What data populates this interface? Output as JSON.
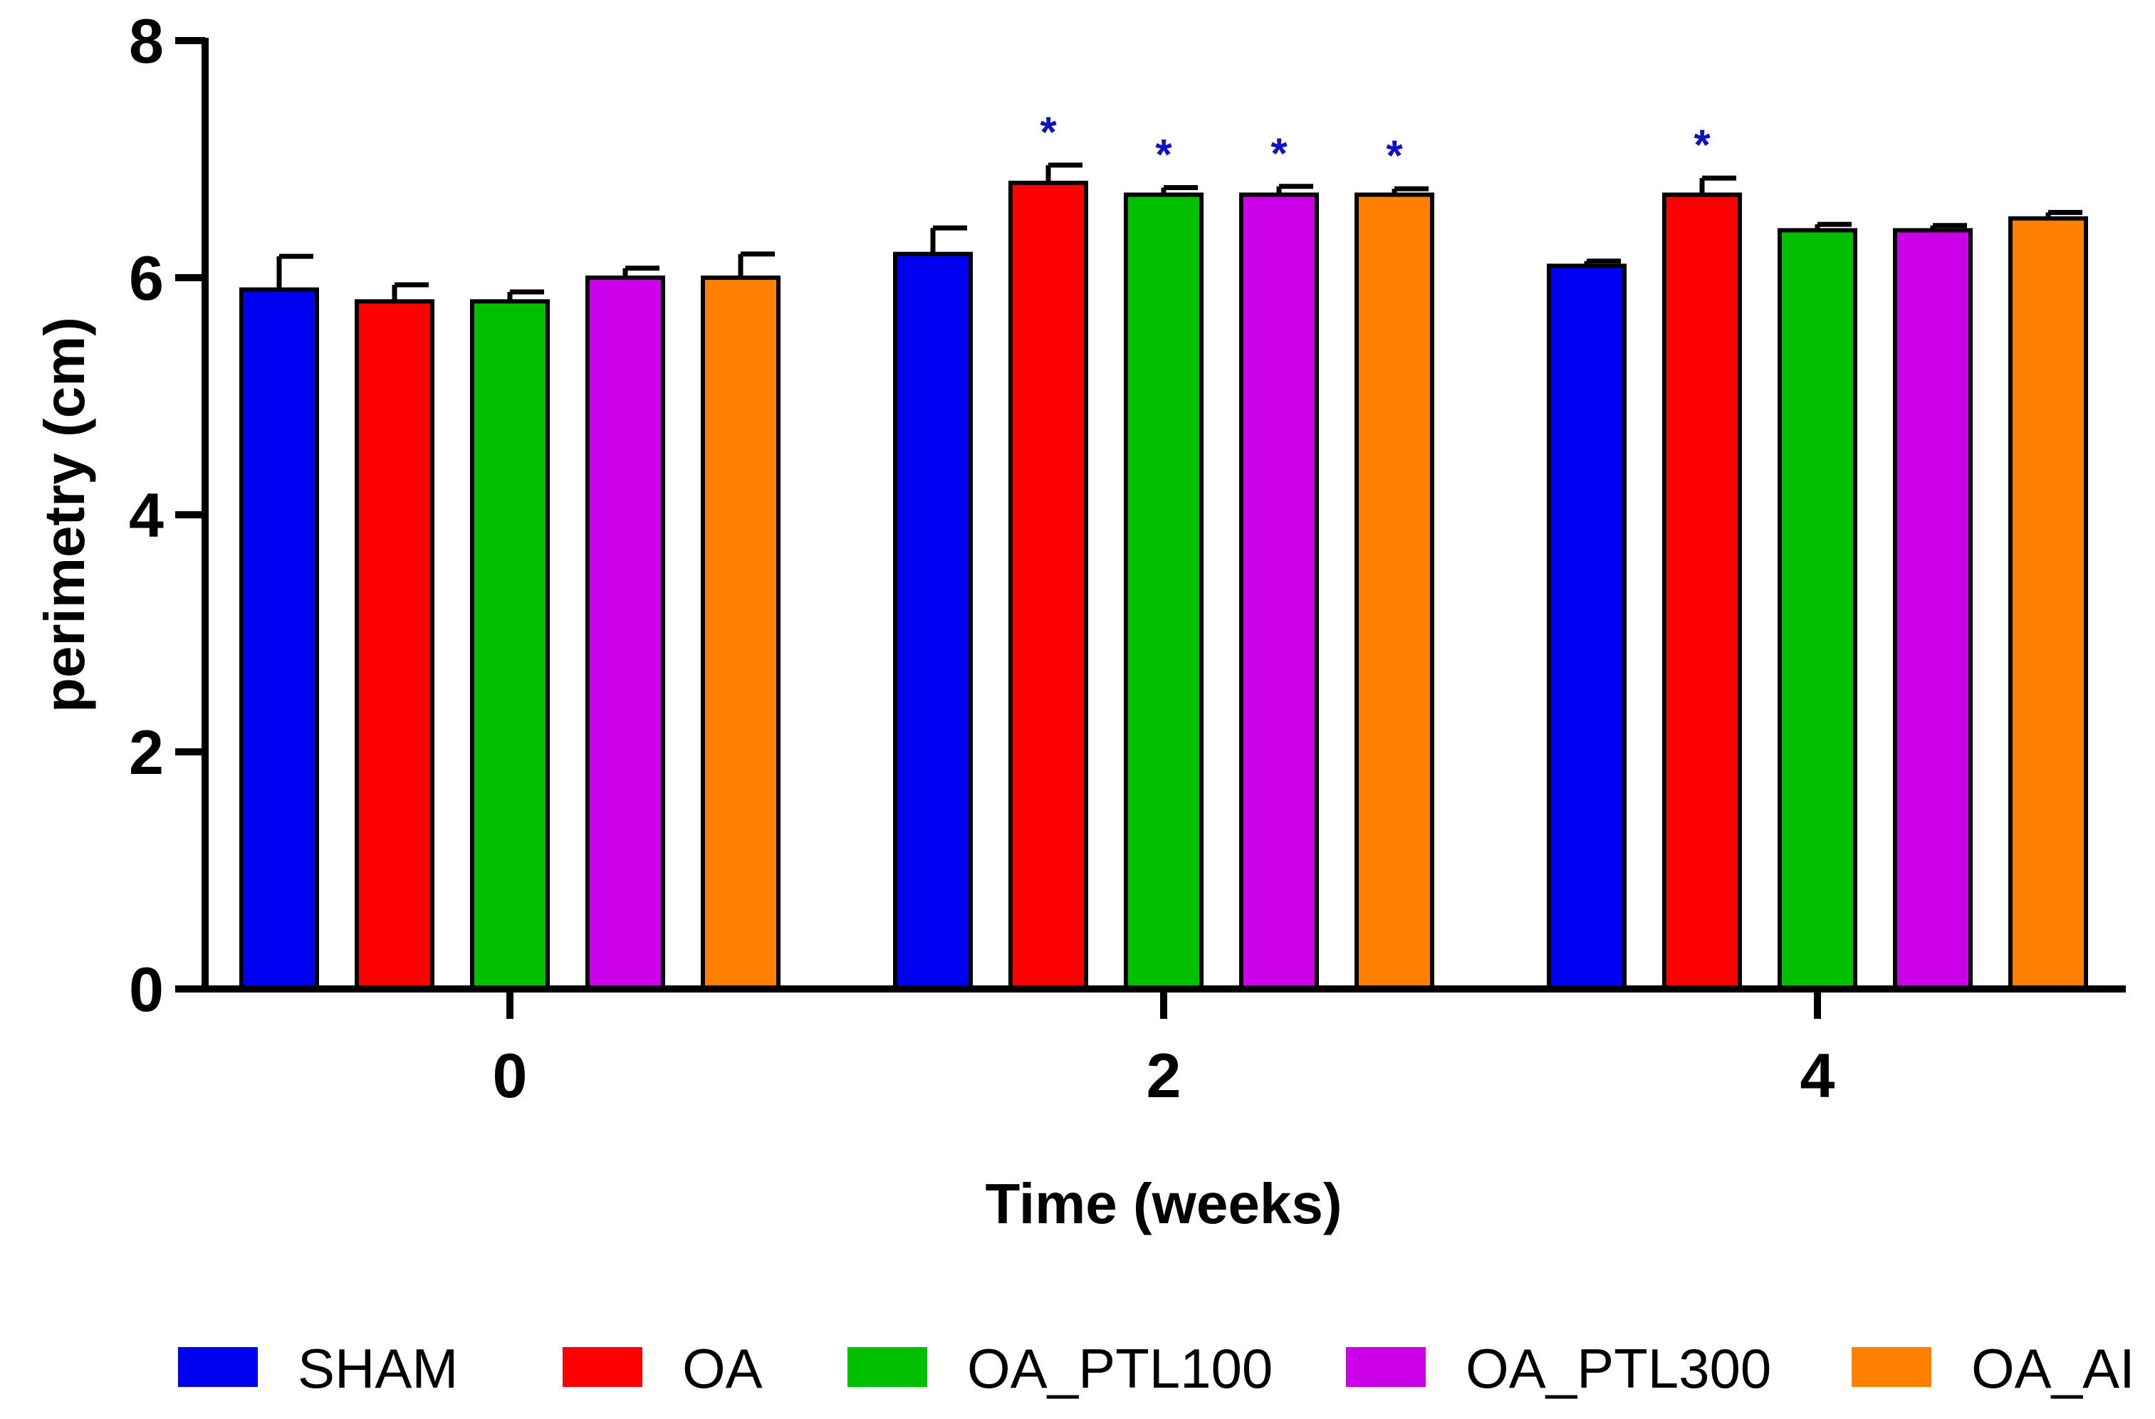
{
  "chart_data": {
    "type": "bar",
    "title": "",
    "xlabel": "Time (weeks)",
    "ylabel": "perimetry (cm)",
    "ylim": [
      0,
      8
    ],
    "yticks": [
      "0",
      "2",
      "4",
      "6",
      "8"
    ],
    "categories": [
      "0",
      "2",
      "4"
    ],
    "series": [
      {
        "name": "SHAM",
        "color": "#0000f0",
        "values": [
          5.9,
          6.2,
          6.1
        ],
        "errors": [
          0.28,
          0.22,
          0.04
        ],
        "significant": [
          false,
          false,
          false
        ]
      },
      {
        "name": "OA",
        "color": "#ff0000",
        "values": [
          5.8,
          6.8,
          6.7
        ],
        "errors": [
          0.14,
          0.15,
          0.14
        ],
        "significant": [
          false,
          true,
          true
        ]
      },
      {
        "name": "OA_PTL100",
        "color": "#00c000",
        "values": [
          5.8,
          6.7,
          6.4
        ],
        "errors": [
          0.08,
          0.06,
          0.05
        ],
        "significant": [
          false,
          true,
          false
        ]
      },
      {
        "name": "OA_PTL300",
        "color": "#cc00e8",
        "values": [
          6.0,
          6.7,
          6.4
        ],
        "errors": [
          0.08,
          0.07,
          0.04
        ],
        "significant": [
          false,
          true,
          false
        ]
      },
      {
        "name": "OA_AI",
        "color": "#ff8000",
        "values": [
          6.0,
          6.7,
          6.5
        ],
        "errors": [
          0.2,
          0.05,
          0.05
        ],
        "significant": [
          false,
          true,
          false
        ]
      }
    ],
    "significance_marker": "*",
    "legend_position": "bottom",
    "grid": false
  }
}
